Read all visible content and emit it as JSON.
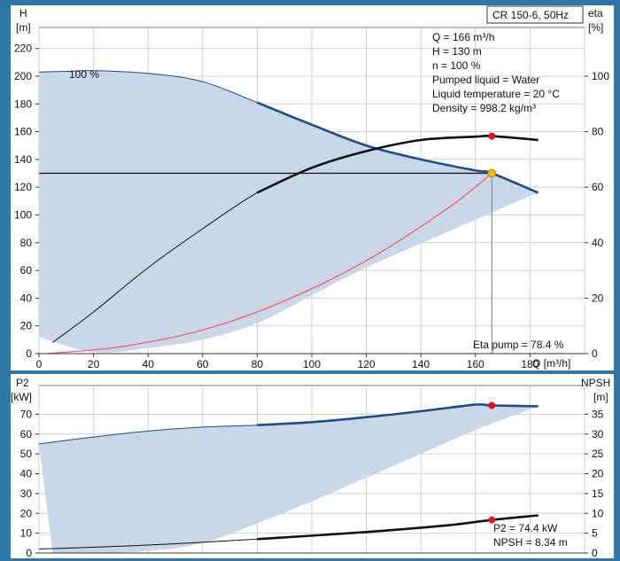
{
  "chart_data": [
    {
      "type": "line",
      "badge": "CR 150-6, 50Hz",
      "ylabel_left": [
        "H",
        "[m]"
      ],
      "ylabel_right": [
        "eta",
        "[%]"
      ],
      "xlabel": "Q [m³/h]",
      "xlim": [
        0,
        200
      ],
      "ylim_left": [
        0,
        230
      ],
      "ylim_right": [
        0,
        100
      ],
      "x_ticks": [
        "0",
        "20",
        "40",
        "60",
        "80",
        "100",
        "120",
        "140",
        "160",
        "180"
      ],
      "y_ticks_left": [
        "0",
        "20",
        "40",
        "60",
        "80",
        "100",
        "120",
        "140",
        "160",
        "180",
        "200",
        "220"
      ],
      "y_ticks_right": [
        "0",
        "20",
        "40",
        "60",
        "80",
        "100"
      ],
      "annotation_100pct": "100 %",
      "info_lines": [
        "Q = 166 m³/h",
        "H = 130 m",
        "n = 100 %",
        "Pumped liquid = Water",
        "Liquid temperature = 20 °C",
        "Density = 998.2 kg/m³"
      ],
      "eta_label": "Eta pump = 78.4 %",
      "duty_point": {
        "q": 166,
        "h": 130,
        "eta": 78.4
      },
      "series": [
        {
          "key": "H",
          "x": [
            0,
            10,
            20,
            40,
            60,
            80,
            100,
            120,
            140,
            160,
            166,
            183
          ],
          "y": [
            203,
            203.5,
            204,
            202,
            196,
            181,
            165,
            150,
            140,
            132,
            130,
            116
          ]
        },
        {
          "key": "eta",
          "x": [
            5,
            20,
            40,
            60,
            80,
            100,
            120,
            140,
            160,
            166,
            183
          ],
          "y": [
            4,
            15,
            31,
            45,
            58,
            67,
            73,
            77,
            78.2,
            78.4,
            77
          ]
        },
        {
          "key": "system",
          "x": [
            3,
            30,
            60,
            90,
            120,
            150,
            166
          ],
          "y": [
            0,
            5,
            17,
            38,
            67,
            105,
            130
          ]
        }
      ],
      "shaded_band": {
        "upper_x": [
          0,
          10,
          20,
          40,
          60,
          80,
          100,
          120,
          140,
          160,
          166,
          183
        ],
        "upper_y": [
          203,
          203.5,
          204,
          202,
          196,
          181,
          165,
          150,
          140,
          132,
          130,
          116
        ],
        "lower_x": [
          183,
          150,
          120,
          100,
          80,
          60,
          40,
          20,
          0
        ],
        "lower_y": [
          116,
          88,
          62,
          42,
          22,
          10,
          4,
          1,
          12
        ]
      }
    },
    {
      "type": "line",
      "ylabel_left": [
        "P2",
        "[kW]"
      ],
      "ylabel_right": [
        "NPSH",
        "[m]"
      ],
      "ylim_left": [
        0,
        80
      ],
      "ylim_right": [
        0,
        40
      ],
      "y_ticks_left": [
        "0",
        "10",
        "20",
        "30",
        "40",
        "50",
        "60",
        "70"
      ],
      "y_ticks_right": [
        "0",
        "5",
        "10",
        "15",
        "20",
        "25",
        "30",
        "35"
      ],
      "p2_label": "P2 = 74.4 kW",
      "npsh_label": "NPSH = 8.34 m",
      "duty_point": {
        "q": 166,
        "p2": 74.4,
        "npsh": 8.34
      },
      "series": [
        {
          "key": "P2",
          "x": [
            0,
            20,
            40,
            60,
            80,
            100,
            120,
            140,
            160,
            166,
            183
          ],
          "y": [
            55,
            58.5,
            61.5,
            63.5,
            64.5,
            66,
            68.5,
            71.5,
            74.8,
            74.4,
            74
          ]
        },
        {
          "key": "NPSH",
          "x": [
            0,
            40,
            80,
            120,
            150,
            166,
            183
          ],
          "y": [
            1,
            2,
            3.5,
            5.3,
            7,
            8.34,
            9.5
          ]
        }
      ],
      "shaded_band": {
        "upper_x": [
          0,
          20,
          40,
          60,
          80,
          100,
          120,
          140,
          160,
          166,
          183
        ],
        "upper_y": [
          55,
          58.5,
          61.5,
          63.5,
          64.5,
          66,
          68.5,
          71.5,
          74.8,
          74.4,
          74
        ],
        "lower_x": [
          183,
          160,
          140,
          120,
          100,
          80,
          60,
          40,
          20,
          5
        ],
        "lower_y": [
          74,
          62,
          50,
          38,
          26,
          15,
          5,
          1,
          0,
          0
        ]
      }
    }
  ],
  "colors": {
    "background": "#2f77a6",
    "plot_bg": "#ffffff",
    "grid": "#d0d0d0",
    "band": "#c8d8e8",
    "h_curve": "#1c4f8a",
    "eta_curve": "#111111",
    "system_curve": "#ff5a6e",
    "duty_marker": "#e0141e",
    "duty_h_marker": "#f5b800"
  }
}
